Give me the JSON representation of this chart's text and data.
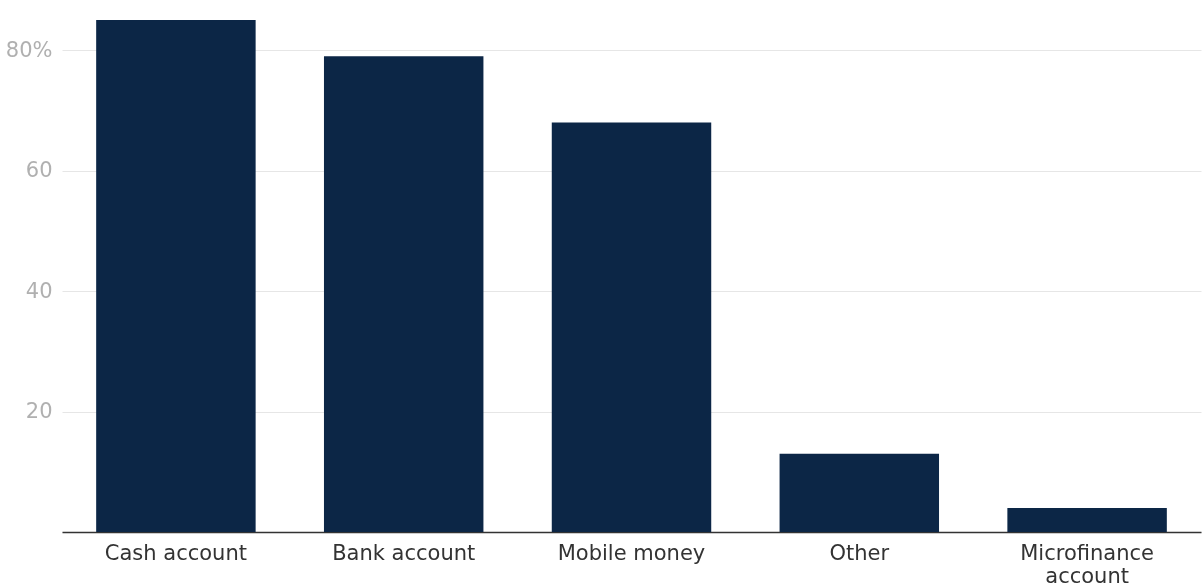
{
  "chart_data": {
    "type": "bar",
    "categories": [
      "Cash account",
      "Bank account",
      "Mobile money",
      "Other",
      "Microfinance account"
    ],
    "values": [
      85,
      79,
      68,
      13,
      4
    ],
    "color": "#0c2646",
    "ylim": [
      0,
      88
    ],
    "yticks": [
      {
        "value": 0,
        "label": null
      },
      20,
      40,
      60,
      {
        "value": 80,
        "label": "80%"
      }
    ],
    "grid": "y"
  }
}
